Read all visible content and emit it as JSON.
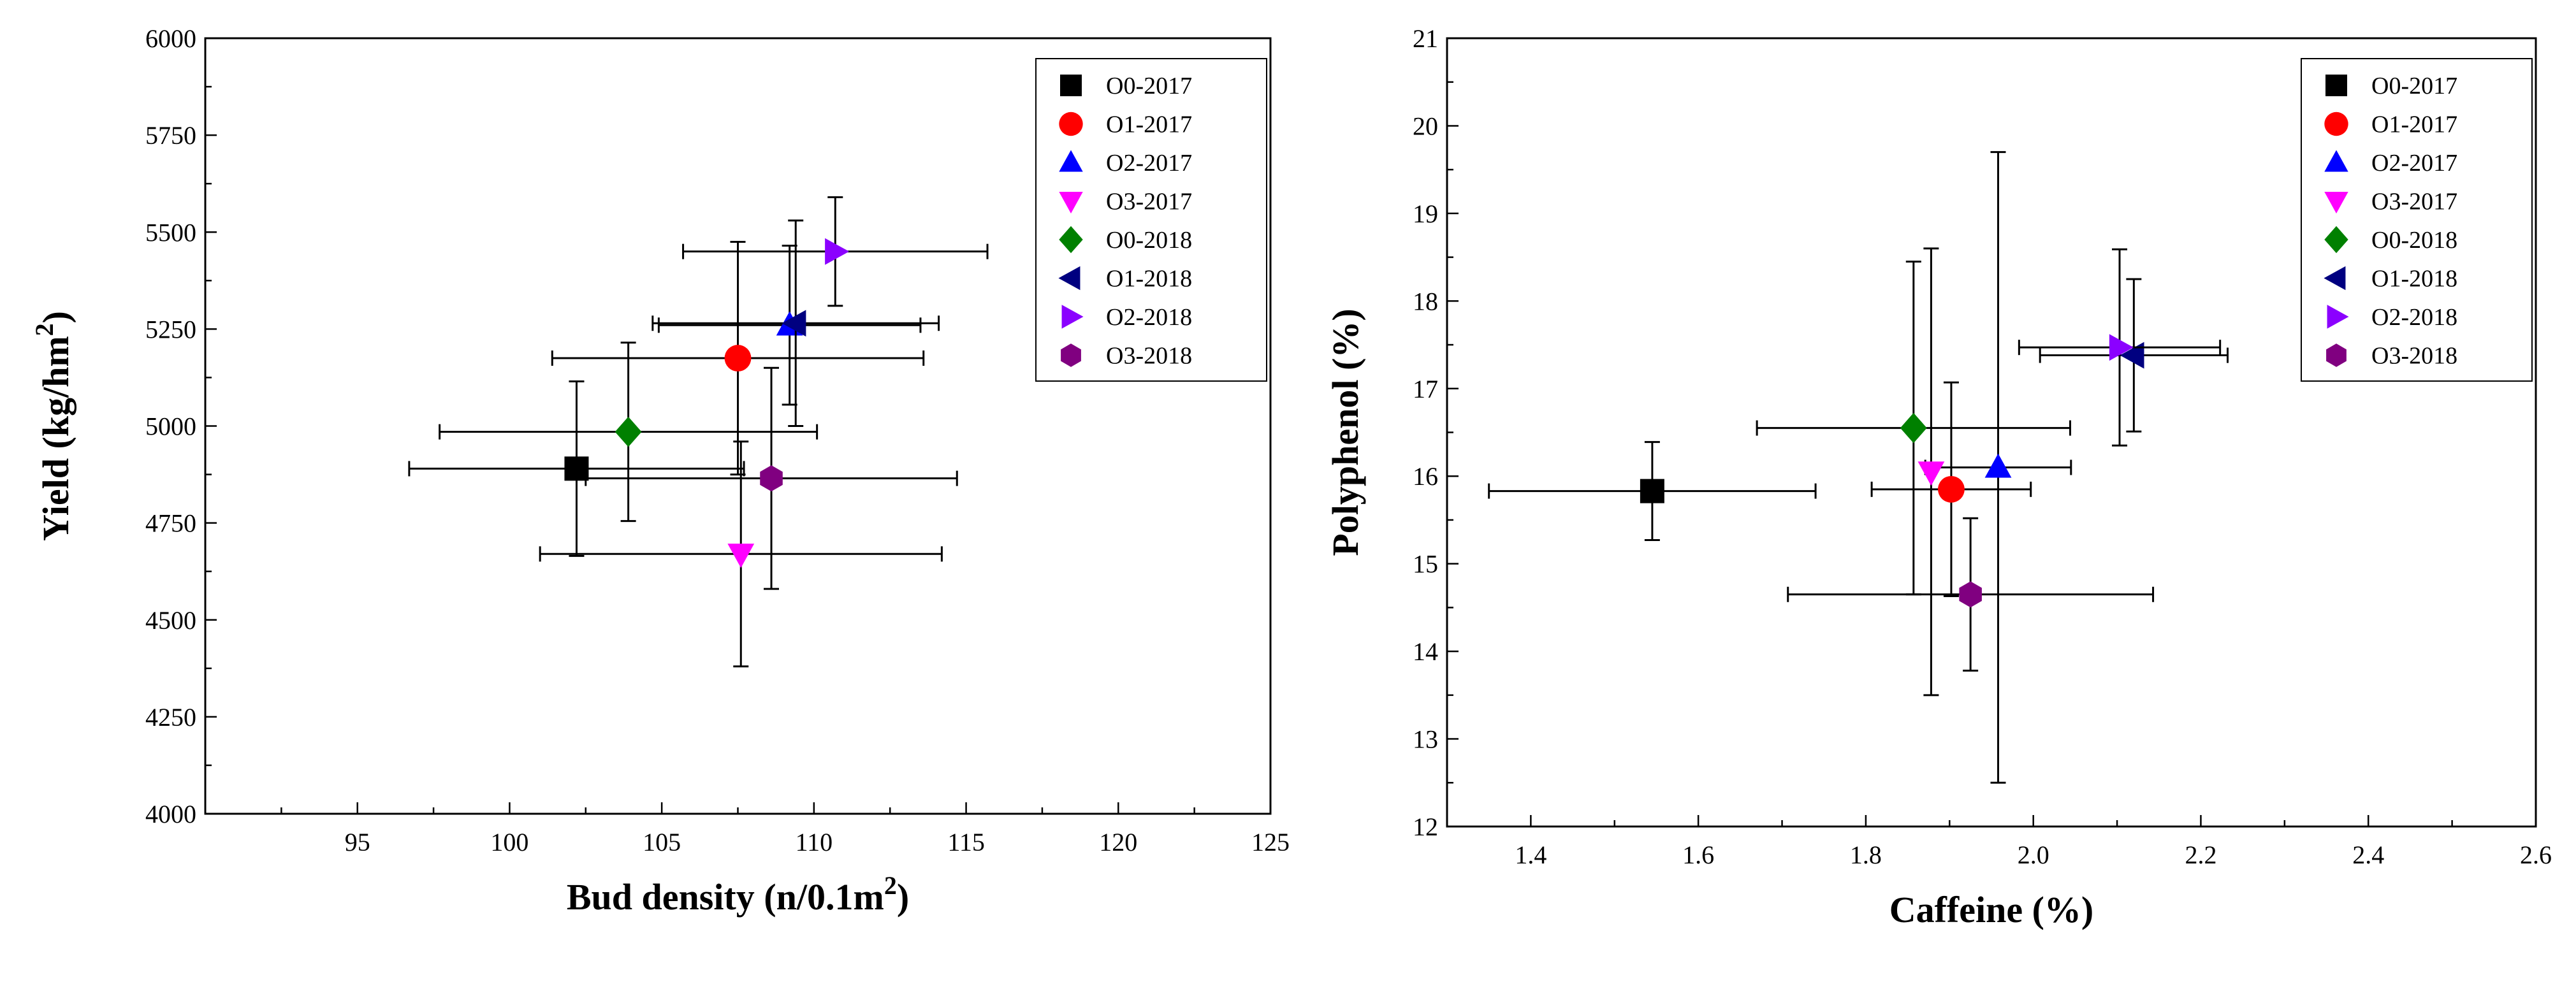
{
  "chart_data": [
    {
      "type": "scatter",
      "panel": "left",
      "xlabel": "Bud density (n/0.1m",
      "xlabel_sup": "2",
      "xlabel_tail": ")",
      "ylabel": "Yield (kg/hm",
      "ylabel_sup": "2",
      "ylabel_tail": ")",
      "xlim": [
        90,
        125
      ],
      "ylim": [
        4000,
        6000
      ],
      "xticks": [
        "95",
        "100",
        "105",
        "110",
        "115",
        "120",
        "125"
      ],
      "yticks": [
        "4000",
        "4250",
        "4500",
        "4750",
        "5000",
        "5250",
        "5500",
        "5750",
        "6000"
      ],
      "legend_position": "top-right",
      "series": [
        {
          "name": "O0-2017",
          "marker": "square",
          "color": "#000000",
          "x": 102.2,
          "y": 4890,
          "xerr": 5.5,
          "yerr": 225
        },
        {
          "name": "O1-2017",
          "marker": "circle",
          "color": "#ff0000",
          "x": 107.5,
          "y": 5175,
          "xerr": 6.1,
          "yerr": 300
        },
        {
          "name": "O2-2017",
          "marker": "triangle-up",
          "color": "#0000ff",
          "x": 109.2,
          "y": 5260,
          "xerr": 4.3,
          "yerr": 205
        },
        {
          "name": "O3-2017",
          "marker": "triangle-down",
          "color": "#ff00ff",
          "x": 107.6,
          "y": 4670,
          "xerr": 6.6,
          "yerr": 290
        },
        {
          "name": "O0-2018",
          "marker": "diamond",
          "color": "#008000",
          "x": 103.9,
          "y": 4985,
          "xerr": 6.2,
          "yerr": 230
        },
        {
          "name": "O1-2018",
          "marker": "triangle-left",
          "color": "#000080",
          "x": 109.4,
          "y": 5265,
          "xerr": 4.7,
          "yerr": 265
        },
        {
          "name": "O2-2018",
          "marker": "triangle-right",
          "color": "#8b00ff",
          "x": 110.7,
          "y": 5450,
          "xerr": 5.0,
          "yerr": 140
        },
        {
          "name": "O3-2018",
          "marker": "hexagon",
          "color": "#800080",
          "x": 108.6,
          "y": 4865,
          "xerr": 6.1,
          "yerr": 285
        }
      ]
    },
    {
      "type": "scatter",
      "panel": "right",
      "xlabel": "Caffeine (%)",
      "ylabel": "Polyphenol (%)",
      "xlim": [
        1.3,
        2.6
      ],
      "ylim": [
        12,
        21
      ],
      "xticks": [
        "1.4",
        "1.6",
        "1.8",
        "2.0",
        "2.2",
        "2.4",
        "2.6"
      ],
      "yticks": [
        "12",
        "13",
        "14",
        "15",
        "16",
        "17",
        "18",
        "19",
        "20",
        "21"
      ],
      "legend_position": "top-right",
      "series": [
        {
          "name": "O0-2017",
          "marker": "square",
          "color": "#000000",
          "x": 1.545,
          "y": 15.83,
          "xerr": 0.195,
          "yerr": 0.56
        },
        {
          "name": "O1-2017",
          "marker": "circle",
          "color": "#ff0000",
          "x": 1.902,
          "y": 15.85,
          "xerr": 0.095,
          "yerr": 1.22
        },
        {
          "name": "O2-2017",
          "marker": "triangle-up",
          "color": "#0000ff",
          "x": 1.958,
          "y": 16.1,
          "xerr": 0.087,
          "yerr": 3.6
        },
        {
          "name": "O3-2017",
          "marker": "triangle-down",
          "color": "#ff00ff",
          "x": 1.878,
          "y": 16.05,
          "xerr": 0.0,
          "yerr": 2.55
        },
        {
          "name": "O0-2018",
          "marker": "diamond",
          "color": "#008000",
          "x": 1.857,
          "y": 16.55,
          "xerr": 0.187,
          "yerr": 1.9
        },
        {
          "name": "O1-2018",
          "marker": "triangle-left",
          "color": "#000080",
          "x": 2.12,
          "y": 17.38,
          "xerr": 0.112,
          "yerr": 0.87
        },
        {
          "name": "O2-2018",
          "marker": "triangle-right",
          "color": "#8b00ff",
          "x": 2.103,
          "y": 17.47,
          "xerr": 0.12,
          "yerr": 1.12
        },
        {
          "name": "O3-2018",
          "marker": "hexagon",
          "color": "#800080",
          "x": 1.925,
          "y": 14.65,
          "xerr": 0.218,
          "yerr": 0.87
        }
      ]
    }
  ]
}
